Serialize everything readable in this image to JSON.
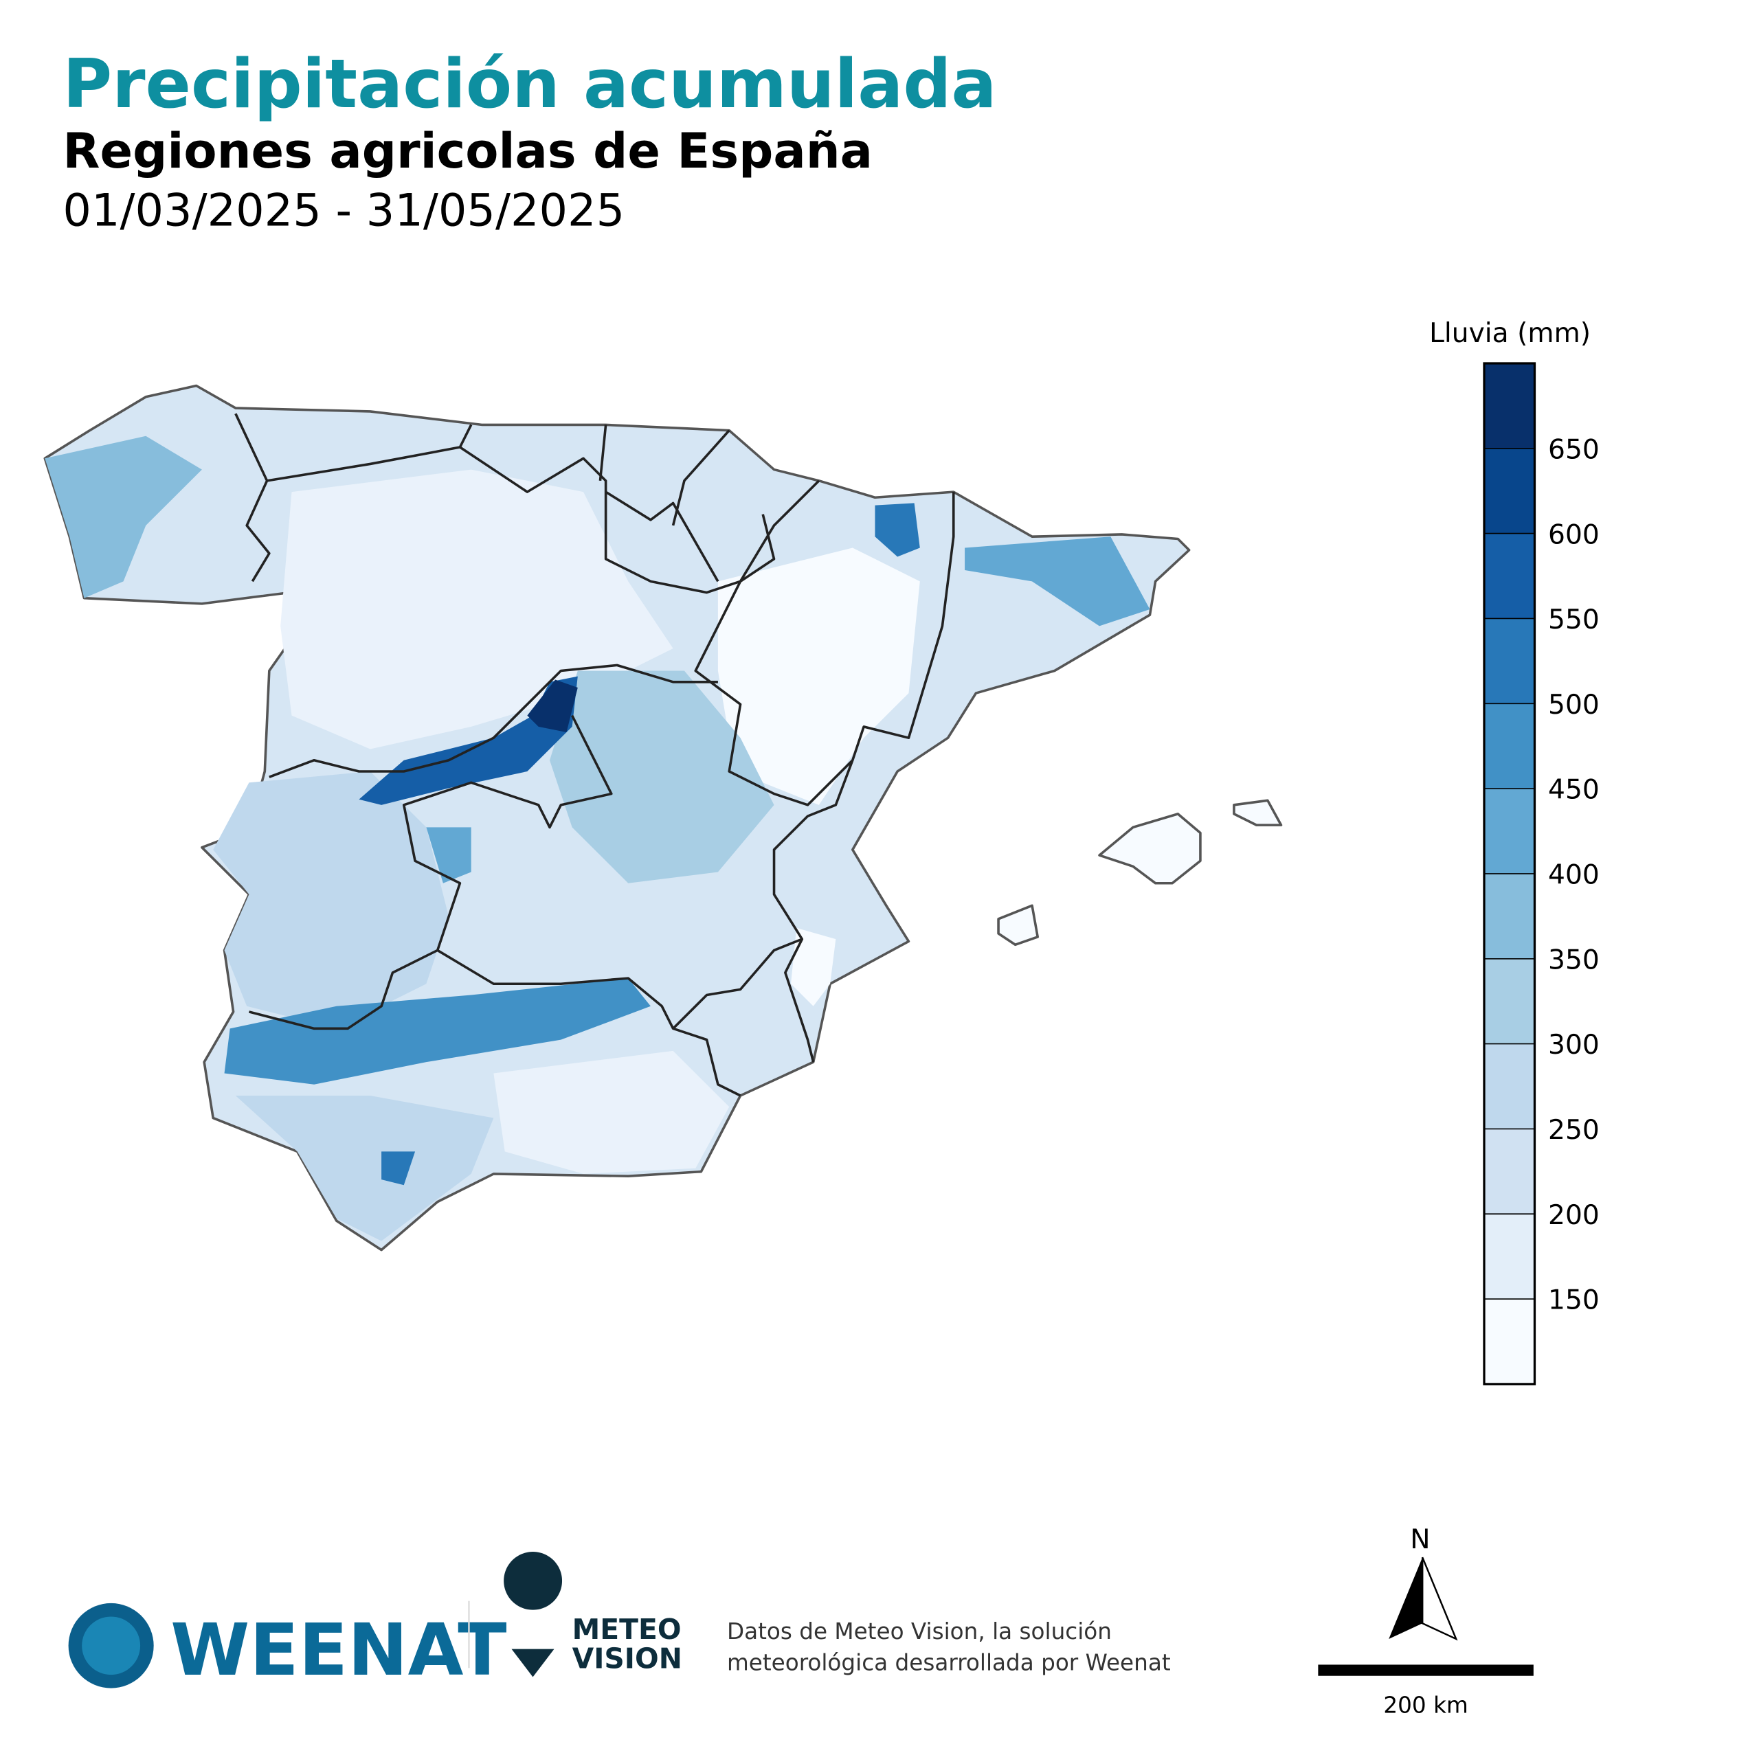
{
  "header": {
    "title": "Precipitación acumulada",
    "subtitle": "Regiones agricolas de España",
    "period": "01/03/2025 - 31/05/2025"
  },
  "legend": {
    "title": "Lluvia (mm)",
    "range": [
      100,
      700
    ],
    "ticks": [
      150,
      200,
      250,
      300,
      350,
      400,
      450,
      500,
      550,
      600,
      650
    ],
    "colors": [
      "#f7fbff",
      "#e3eef9",
      "#d0e1f2",
      "#bfd8ed",
      "#a8cee4",
      "#87bddc",
      "#62a8d3",
      "#4191c6",
      "#2878b8",
      "#155ea7",
      "#08468c",
      "#08306b"
    ]
  },
  "north": "N",
  "scale": "200 km",
  "footer": {
    "brand": "WEENAT",
    "partner_top": "METEO",
    "partner_bottom": "VISION",
    "credit_1": "Datos de Meteo Vision, la solución",
    "credit_2": "meteorológica desarrollada por Weenat"
  }
}
